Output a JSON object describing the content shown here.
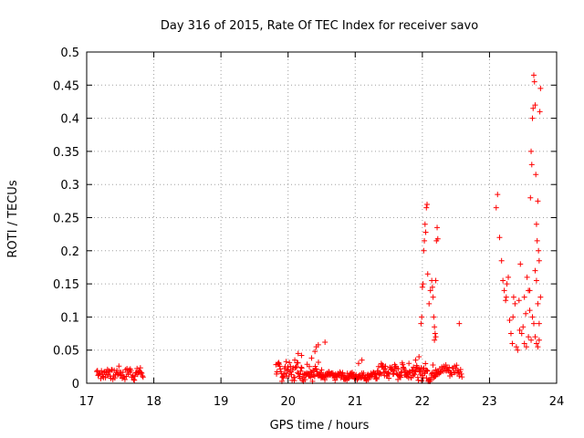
{
  "chart_data": {
    "type": "scatter",
    "title": "Day 316 of 2015, Rate Of TEC Index for receiver savo",
    "xlabel": "GPS time / hours",
    "ylabel": "ROTI / TECUs",
    "xlim": [
      17,
      24
    ],
    "ylim": [
      0,
      0.5
    ],
    "xticks": [
      "17",
      "18",
      "19",
      "20",
      "21",
      "22",
      "23",
      "24"
    ],
    "yticks": [
      "0",
      "0.05",
      "0.1",
      "0.15",
      "0.2",
      "0.25",
      "0.3",
      "0.35",
      "0.4",
      "0.45",
      "0.5"
    ],
    "grid": true,
    "marker": "+",
    "color": "#ff0000",
    "segments": [
      {
        "x0": 17.15,
        "x1": 17.85,
        "base": 0.015,
        "amp": 0.008,
        "step": 0.01
      },
      {
        "x0": 19.82,
        "x1": 20.5,
        "base": 0.018,
        "amp": 0.012,
        "step": 0.008
      },
      {
        "x0": 20.5,
        "x1": 21.3,
        "base": 0.011,
        "amp": 0.005,
        "step": 0.008
      },
      {
        "x0": 21.3,
        "x1": 21.95,
        "base": 0.018,
        "amp": 0.01,
        "step": 0.008
      },
      {
        "x0": 21.95,
        "x1": 22.2,
        "base": 0.015,
        "amp": 0.012,
        "step": 0.008
      },
      {
        "x0": 22.2,
        "x1": 22.6,
        "base": 0.02,
        "amp": 0.008,
        "step": 0.01
      }
    ],
    "points": [
      [
        20.1,
        0.035
      ],
      [
        20.15,
        0.045
      ],
      [
        20.2,
        0.042
      ],
      [
        20.35,
        0.038
      ],
      [
        20.4,
        0.048
      ],
      [
        20.42,
        0.055
      ],
      [
        20.45,
        0.058
      ],
      [
        20.55,
        0.062
      ],
      [
        21.05,
        0.03
      ],
      [
        21.1,
        0.035
      ],
      [
        21.8,
        0.03
      ],
      [
        21.9,
        0.035
      ],
      [
        21.95,
        0.04
      ],
      [
        22.55,
        0.09
      ],
      [
        21.98,
        0.09
      ],
      [
        21.99,
        0.1
      ],
      [
        22.0,
        0.145
      ],
      [
        22.01,
        0.15
      ],
      [
        22.02,
        0.2
      ],
      [
        22.03,
        0.215
      ],
      [
        22.04,
        0.24
      ],
      [
        22.05,
        0.228
      ],
      [
        22.06,
        0.265
      ],
      [
        22.07,
        0.27
      ],
      [
        22.08,
        0.165
      ],
      [
        22.1,
        0.12
      ],
      [
        22.12,
        0.14
      ],
      [
        22.14,
        0.155
      ],
      [
        22.15,
        0.145
      ],
      [
        22.16,
        0.13
      ],
      [
        22.17,
        0.1
      ],
      [
        22.18,
        0.085
      ],
      [
        22.19,
        0.075
      ],
      [
        22.2,
        0.155
      ],
      [
        22.21,
        0.215
      ],
      [
        22.22,
        0.235
      ],
      [
        22.23,
        0.218
      ],
      [
        22.18,
        0.065
      ],
      [
        22.2,
        0.07
      ],
      [
        23.1,
        0.265
      ],
      [
        23.12,
        0.285
      ],
      [
        23.15,
        0.22
      ],
      [
        23.18,
        0.185
      ],
      [
        23.2,
        0.155
      ],
      [
        23.22,
        0.14
      ],
      [
        23.24,
        0.125
      ],
      [
        23.26,
        0.15
      ],
      [
        23.28,
        0.16
      ],
      [
        23.3,
        0.095
      ],
      [
        23.32,
        0.075
      ],
      [
        23.34,
        0.06
      ],
      [
        23.36,
        0.13
      ],
      [
        23.38,
        0.12
      ],
      [
        23.4,
        0.055
      ],
      [
        23.42,
        0.05
      ],
      [
        23.44,
        0.125
      ],
      [
        23.46,
        0.18
      ],
      [
        23.48,
        0.075
      ],
      [
        23.5,
        0.085
      ],
      [
        23.52,
        0.06
      ],
      [
        23.54,
        0.105
      ],
      [
        23.56,
        0.16
      ],
      [
        23.58,
        0.14
      ],
      [
        23.6,
        0.11
      ],
      [
        23.61,
        0.28
      ],
      [
        23.62,
        0.35
      ],
      [
        23.63,
        0.33
      ],
      [
        23.64,
        0.4
      ],
      [
        23.65,
        0.415
      ],
      [
        23.66,
        0.465
      ],
      [
        23.67,
        0.455
      ],
      [
        23.68,
        0.42
      ],
      [
        23.69,
        0.315
      ],
      [
        23.7,
        0.24
      ],
      [
        23.71,
        0.215
      ],
      [
        23.72,
        0.275
      ],
      [
        23.73,
        0.2
      ],
      [
        23.74,
        0.185
      ],
      [
        23.75,
        0.41
      ],
      [
        23.76,
        0.445
      ],
      [
        23.7,
        0.155
      ],
      [
        23.72,
        0.12
      ],
      [
        23.74,
        0.09
      ],
      [
        23.68,
        0.07
      ],
      [
        23.7,
        0.06
      ],
      [
        23.72,
        0.055
      ],
      [
        23.74,
        0.065
      ],
      [
        23.76,
        0.13
      ],
      [
        23.66,
        0.09
      ],
      [
        23.64,
        0.1
      ],
      [
        23.62,
        0.065
      ],
      [
        23.58,
        0.07
      ],
      [
        23.55,
        0.055
      ],
      [
        23.45,
        0.08
      ],
      [
        23.35,
        0.1
      ],
      [
        23.25,
        0.13
      ],
      [
        23.52,
        0.13
      ],
      [
        23.6,
        0.14
      ],
      [
        23.68,
        0.17
      ]
    ]
  }
}
